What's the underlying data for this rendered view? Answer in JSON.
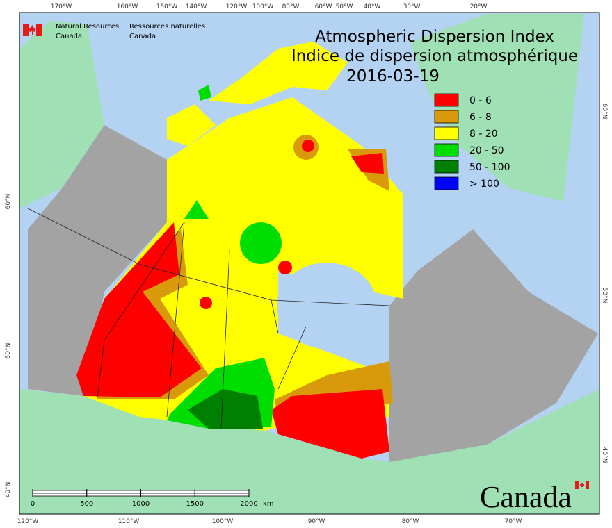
{
  "header": {
    "agency_en": [
      "Natural Resources",
      "Canada"
    ],
    "agency_fr": [
      "Ressources naturelles",
      "Canada"
    ]
  },
  "title": {
    "lines": [
      "Atmospheric Dispersion Index",
      "Indice de dispersion atmosphérique"
    ],
    "date": "2016-03-19"
  },
  "legend": [
    {
      "label": "0 - 6",
      "color": "#ff0000"
    },
    {
      "label": "6 - 8",
      "color": "#d89a0a"
    },
    {
      "label": "8 - 20",
      "color": "#ffff00"
    },
    {
      "label": "20 - 50",
      "color": "#00dd00"
    },
    {
      "label": "50 - 100",
      "color": "#008000"
    },
    {
      "label": "> 100",
      "color": "#0000ff"
    }
  ],
  "graticule": {
    "top": [
      "170°W",
      "160°W",
      "150°W",
      "140°W",
      "120°W",
      "100°W",
      "80°W",
      "60°W",
      "50°W",
      "40°W",
      "30°W",
      "20°W"
    ],
    "bottom": [
      "120°W",
      "110°W",
      "100°W",
      "90°W",
      "80°W",
      "70°W"
    ],
    "left": [
      "60°N",
      "50°N",
      "40°N"
    ],
    "right": [
      "60°N",
      "50°N",
      "40°N"
    ]
  },
  "scale_bar": {
    "ticks": [
      0,
      500,
      1000,
      1500,
      2000
    ],
    "unit": "km"
  },
  "wordmark": "Canada"
}
